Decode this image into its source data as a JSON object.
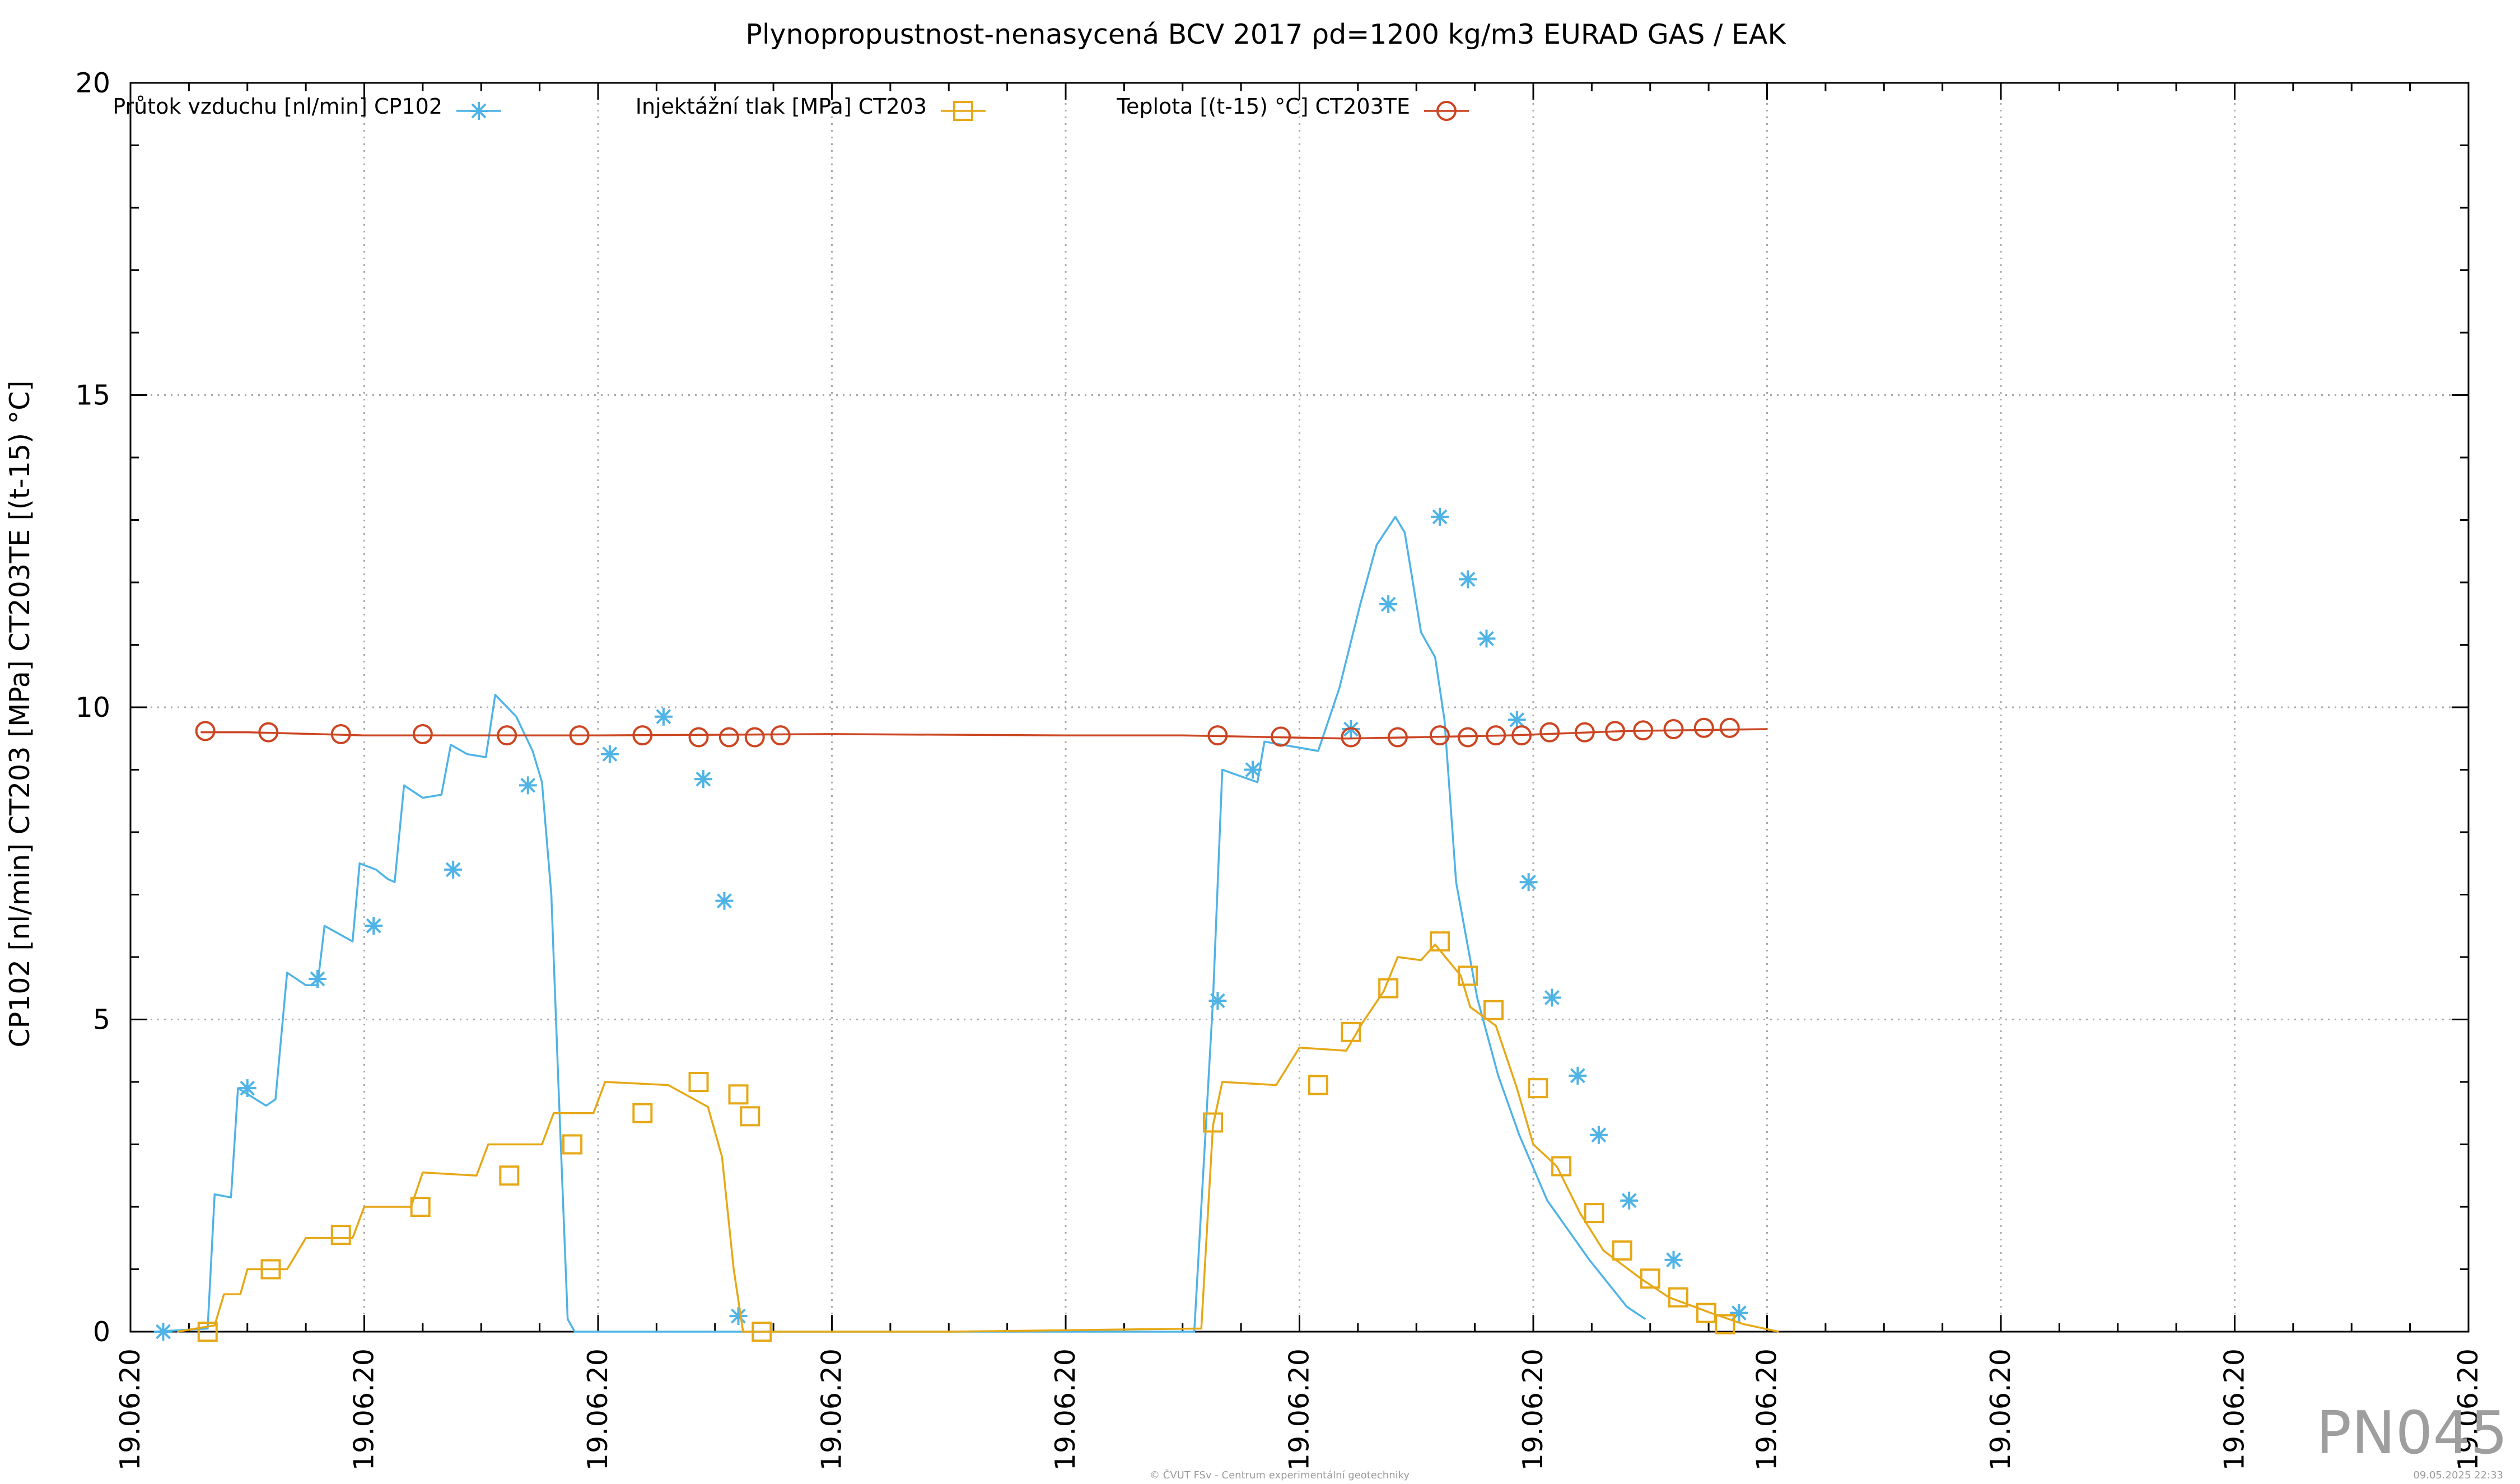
{
  "chart_data": {
    "type": "line",
    "title": "Plynopropustnost-nenasycená BCV 2017 ρd=1200 kg/m3 EURAD GAS / EAK",
    "ylabel": "CP102 [nl/min] CT203 [MPa] CT203TE [(t-15) °C]",
    "xlabel": "",
    "ylim": [
      0,
      20
    ],
    "xlim": [
      0,
      10
    ],
    "yticks": [
      0,
      5,
      10,
      15,
      20
    ],
    "xticks": [
      0,
      1,
      2,
      3,
      4,
      5,
      6,
      7,
      8,
      9,
      10
    ],
    "xtick_labels": [
      "19.06.20",
      "19.06.20",
      "19.06.20",
      "19.06.20",
      "19.06.20",
      "19.06.20",
      "19.06.20",
      "19.06.20",
      "19.06.20",
      "19.06.20",
      "19.06.20"
    ],
    "grid": true,
    "legend_position": "top",
    "series": [
      {
        "name": "Průtok vzduchu [nl/min] CP102",
        "color": "#4fb3e6",
        "marker": "star",
        "line": [
          [
            0.1,
            0
          ],
          [
            0.33,
            0.05
          ],
          [
            0.36,
            2.2
          ],
          [
            0.43,
            2.15
          ],
          [
            0.46,
            3.9
          ],
          [
            0.58,
            3.62
          ],
          [
            0.62,
            3.72
          ],
          [
            0.67,
            5.75
          ],
          [
            0.75,
            5.55
          ],
          [
            0.8,
            5.55
          ],
          [
            0.83,
            6.5
          ],
          [
            0.95,
            6.25
          ],
          [
            0.98,
            7.5
          ],
          [
            1.05,
            7.4
          ],
          [
            1.1,
            7.25
          ],
          [
            1.13,
            7.2
          ],
          [
            1.17,
            8.75
          ],
          [
            1.25,
            8.55
          ],
          [
            1.33,
            8.6
          ],
          [
            1.37,
            9.4
          ],
          [
            1.44,
            9.25
          ],
          [
            1.52,
            9.2
          ],
          [
            1.56,
            10.2
          ],
          [
            1.65,
            9.85
          ],
          [
            1.72,
            9.3
          ],
          [
            1.76,
            8.8
          ],
          [
            1.8,
            7.0
          ],
          [
            1.83,
            4.0
          ],
          [
            1.87,
            0.2
          ],
          [
            1.9,
            0
          ],
          [
            4.55,
            0
          ],
          [
            4.63,
            5.3
          ],
          [
            4.67,
            9.0
          ],
          [
            4.82,
            8.8
          ],
          [
            4.85,
            9.45
          ],
          [
            5.08,
            9.3
          ],
          [
            5.17,
            10.3
          ],
          [
            5.26,
            11.65
          ],
          [
            5.33,
            12.6
          ],
          [
            5.41,
            13.05
          ],
          [
            5.45,
            12.8
          ],
          [
            5.52,
            11.2
          ],
          [
            5.58,
            10.8
          ],
          [
            5.62,
            9.8
          ],
          [
            5.67,
            7.2
          ],
          [
            5.76,
            5.35
          ],
          [
            5.85,
            4.1
          ],
          [
            5.94,
            3.15
          ],
          [
            6.06,
            2.1
          ],
          [
            6.24,
            1.15
          ],
          [
            6.4,
            0.4
          ],
          [
            6.48,
            0.2
          ]
        ],
        "markers": [
          [
            0.14,
            0
          ],
          [
            0.5,
            3.9
          ],
          [
            0.8,
            5.65
          ],
          [
            1.04,
            6.5
          ],
          [
            1.38,
            7.4
          ],
          [
            1.7,
            8.75
          ],
          [
            2.05,
            9.25
          ],
          [
            2.28,
            9.85
          ],
          [
            2.45,
            8.85
          ],
          [
            2.54,
            6.9
          ],
          [
            2.6,
            0.25
          ],
          [
            4.65,
            5.3
          ],
          [
            4.8,
            9.0
          ],
          [
            5.22,
            9.65
          ],
          [
            5.38,
            11.65
          ],
          [
            5.6,
            13.05
          ],
          [
            5.72,
            12.05
          ],
          [
            5.8,
            11.1
          ],
          [
            5.93,
            9.8
          ],
          [
            5.98,
            7.2
          ],
          [
            6.08,
            5.35
          ],
          [
            6.19,
            4.1
          ],
          [
            6.28,
            3.15
          ],
          [
            6.41,
            2.1
          ],
          [
            6.6,
            1.15
          ],
          [
            6.88,
            0.3
          ]
        ]
      },
      {
        "name": "Injektážní tlak [MPa] CT203",
        "color": "#e6a817",
        "marker": "square",
        "line": [
          [
            0.2,
            0
          ],
          [
            0.36,
            0.1
          ],
          [
            0.4,
            0.6
          ],
          [
            0.47,
            0.6
          ],
          [
            0.5,
            1.0
          ],
          [
            0.67,
            1.0
          ],
          [
            0.75,
            1.5
          ],
          [
            0.95,
            1.5
          ],
          [
            1.0,
            2.0
          ],
          [
            1.2,
            2.0
          ],
          [
            1.25,
            2.55
          ],
          [
            1.48,
            2.5
          ],
          [
            1.53,
            3.0
          ],
          [
            1.76,
            3.0
          ],
          [
            1.81,
            3.5
          ],
          [
            1.98,
            3.5
          ],
          [
            2.03,
            4.0
          ],
          [
            2.3,
            3.95
          ],
          [
            2.47,
            3.6
          ],
          [
            2.53,
            2.8
          ],
          [
            2.58,
            1.0
          ],
          [
            2.62,
            0
          ],
          [
            3.5,
            0
          ],
          [
            4.58,
            0.05
          ],
          [
            4.63,
            3.3
          ],
          [
            4.67,
            4.0
          ],
          [
            4.9,
            3.95
          ],
          [
            5.0,
            4.55
          ],
          [
            5.2,
            4.5
          ],
          [
            5.27,
            4.95
          ],
          [
            5.36,
            5.45
          ],
          [
            5.42,
            6.0
          ],
          [
            5.52,
            5.95
          ],
          [
            5.58,
            6.2
          ],
          [
            5.69,
            5.7
          ],
          [
            5.73,
            5.2
          ],
          [
            5.84,
            4.9
          ],
          [
            5.93,
            3.9
          ],
          [
            6.0,
            3.0
          ],
          [
            6.1,
            2.65
          ],
          [
            6.2,
            1.9
          ],
          [
            6.3,
            1.3
          ],
          [
            6.46,
            0.85
          ],
          [
            6.58,
            0.55
          ],
          [
            6.76,
            0.3
          ],
          [
            6.9,
            0.12
          ],
          [
            7.05,
            0
          ]
        ],
        "markers": [
          [
            0.33,
            0
          ],
          [
            0.6,
            1.0
          ],
          [
            0.9,
            1.55
          ],
          [
            1.24,
            2.0
          ],
          [
            1.62,
            2.5
          ],
          [
            1.89,
            3.0
          ],
          [
            2.19,
            3.5
          ],
          [
            2.43,
            4.0
          ],
          [
            2.6,
            3.8
          ],
          [
            2.65,
            3.45
          ],
          [
            2.7,
            0
          ],
          [
            4.63,
            3.35
          ],
          [
            5.08,
            3.95
          ],
          [
            5.22,
            4.8
          ],
          [
            5.38,
            5.5
          ],
          [
            5.6,
            6.25
          ],
          [
            5.72,
            5.7
          ],
          [
            5.83,
            5.15
          ],
          [
            6.02,
            3.9
          ],
          [
            6.12,
            2.65
          ],
          [
            6.26,
            1.9
          ],
          [
            6.38,
            1.3
          ],
          [
            6.5,
            0.85
          ],
          [
            6.62,
            0.55
          ],
          [
            6.74,
            0.3
          ],
          [
            6.82,
            0.12
          ]
        ]
      },
      {
        "name": "Teplota [(t-15) °C] CT203TE",
        "color": "#cc4522",
        "marker": "circle",
        "line": [
          [
            0.3,
            9.6
          ],
          [
            0.5,
            9.6
          ],
          [
            1.0,
            9.55
          ],
          [
            2.0,
            9.55
          ],
          [
            3.0,
            9.57
          ],
          [
            4.0,
            9.55
          ],
          [
            4.5,
            9.55
          ],
          [
            4.9,
            9.52
          ],
          [
            5.2,
            9.5
          ],
          [
            5.5,
            9.52
          ],
          [
            5.9,
            9.55
          ],
          [
            6.4,
            9.62
          ],
          [
            7.0,
            9.65
          ]
        ],
        "markers": [
          [
            0.32,
            9.62
          ],
          [
            0.59,
            9.6
          ],
          [
            0.9,
            9.57
          ],
          [
            1.25,
            9.57
          ],
          [
            1.61,
            9.55
          ],
          [
            1.92,
            9.55
          ],
          [
            2.19,
            9.55
          ],
          [
            2.43,
            9.52
          ],
          [
            2.56,
            9.52
          ],
          [
            2.67,
            9.52
          ],
          [
            2.78,
            9.55
          ],
          [
            4.65,
            9.55
          ],
          [
            4.92,
            9.53
          ],
          [
            5.22,
            9.52
          ],
          [
            5.42,
            9.52
          ],
          [
            5.6,
            9.55
          ],
          [
            5.72,
            9.52
          ],
          [
            5.84,
            9.55
          ],
          [
            5.95,
            9.55
          ],
          [
            6.07,
            9.6
          ],
          [
            6.22,
            9.6
          ],
          [
            6.35,
            9.62
          ],
          [
            6.47,
            9.63
          ],
          [
            6.6,
            9.65
          ],
          [
            6.73,
            9.67
          ],
          [
            6.84,
            9.67
          ]
        ]
      }
    ]
  },
  "footer": {
    "copyright": "© ČVUT FSv - Centrum experimentální geotechniky",
    "timestamp": "09.05.2025 22:33",
    "badge": "PN045"
  }
}
